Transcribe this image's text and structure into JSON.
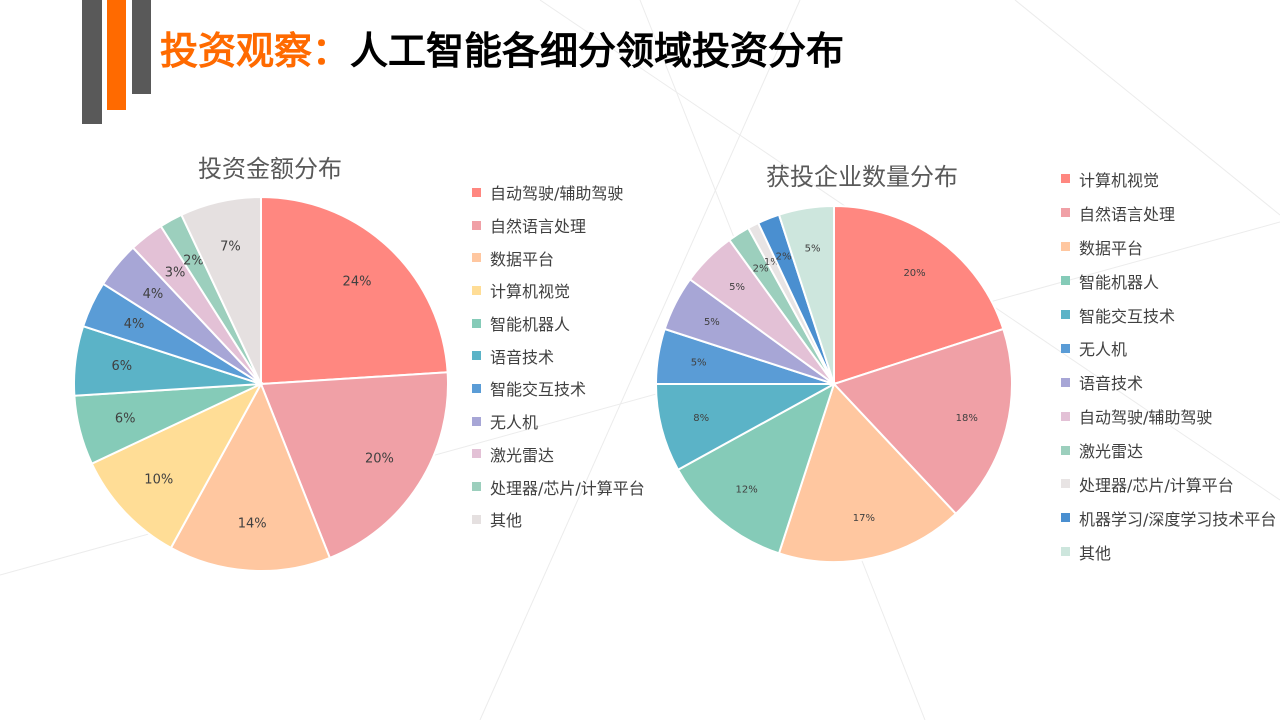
{
  "header": {
    "title_prefix": "投资观察：",
    "title_main": "人工智能各细分领域投资分布"
  },
  "chart_data": [
    {
      "type": "pie",
      "title": "投资金额分布",
      "categories": [
        "自动驾驶/辅助驾驶",
        "自然语言处理",
        "数据平台",
        "计算机视觉",
        "智能机器人",
        "语音技术",
        "智能交互技术",
        "无人机",
        "激光雷达",
        "处理器/芯片/计算平台",
        "其他"
      ],
      "values": [
        24,
        20,
        14,
        10,
        6,
        6,
        4,
        4,
        3,
        2,
        7
      ],
      "labels": [
        "24%",
        "20%",
        "14%",
        "10%",
        "6%",
        "6%",
        "4%",
        "4%",
        "3%",
        "2%",
        "7%"
      ],
      "colors": [
        "#ff8780",
        "#f0a0a6",
        "#ffc7a0",
        "#ffdd96",
        "#85cbb8",
        "#5bb3c7",
        "#5a9cd6",
        "#a7a6d6",
        "#e3c1d6",
        "#9ccfbd",
        "#e5e0e0"
      ],
      "legend_position": "right"
    },
    {
      "type": "pie",
      "title": "获投企业数量分布",
      "categories": [
        "计算机视觉",
        "自然语言处理",
        "数据平台",
        "智能机器人",
        "智能交互技术",
        "无人机",
        "语音技术",
        "自动驾驶/辅助驾驶",
        "激光雷达",
        "处理器/芯片/计算平台",
        "机器学习/深度学习技术平台",
        "其他"
      ],
      "values": [
        20,
        18,
        17,
        12,
        8,
        5,
        5,
        5,
        2,
        1,
        2,
        5
      ],
      "labels": [
        "20%",
        "18%",
        "17%",
        "12%",
        "8%",
        "5%",
        "5%",
        "5%",
        "2%",
        "1%",
        "2%",
        "5%"
      ],
      "colors": [
        "#ff8780",
        "#f0a0a6",
        "#ffc7a0",
        "#85cbb8",
        "#5bb3c7",
        "#5a9cd6",
        "#a7a6d6",
        "#e3c1d6",
        "#9ccfbd",
        "#e8e4e4",
        "#4a8fd0",
        "#cde6dd"
      ],
      "legend_position": "right"
    }
  ]
}
